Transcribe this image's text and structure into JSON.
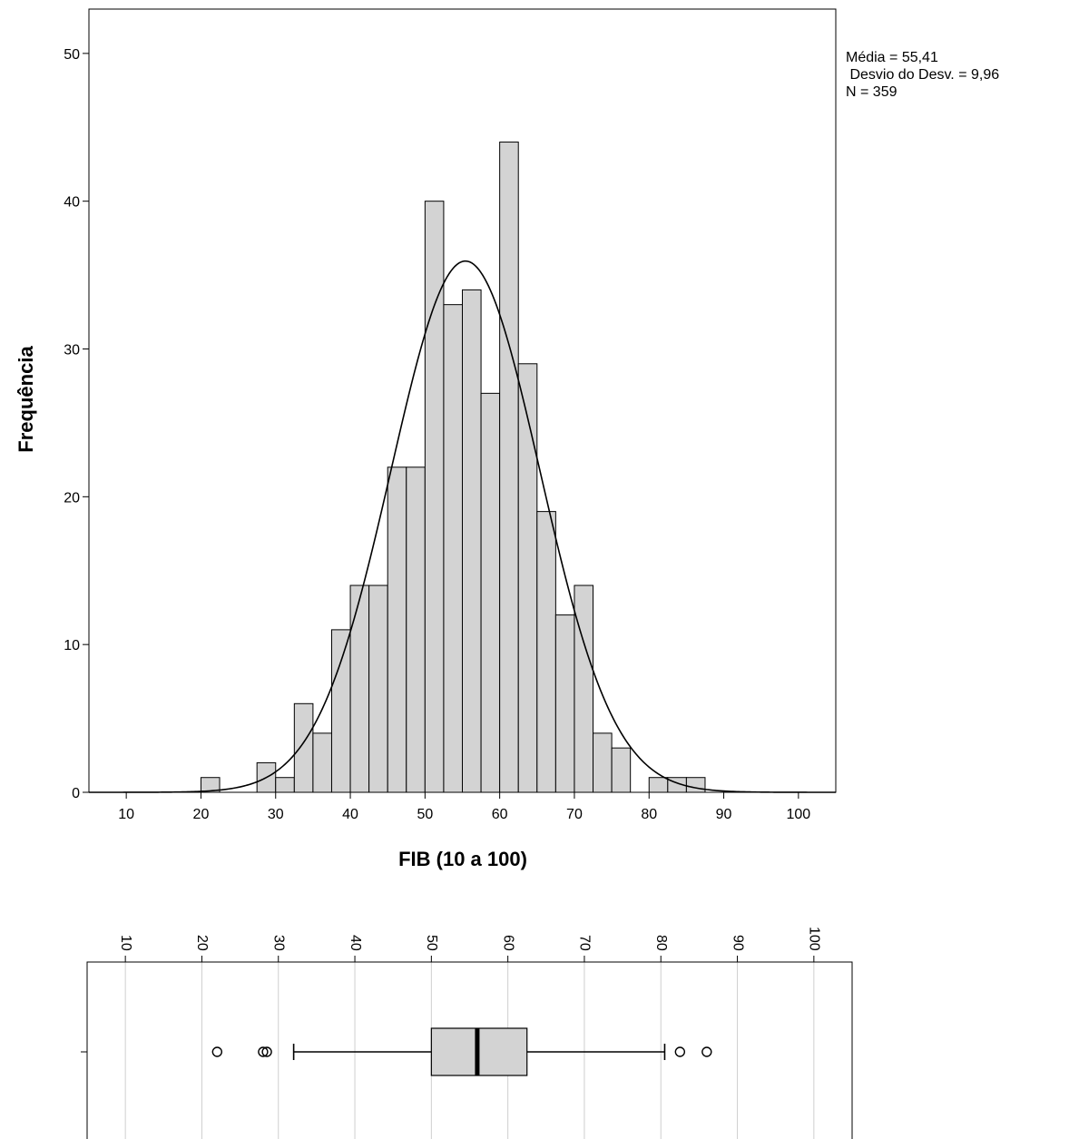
{
  "colors": {
    "bar_fill": "#d3d3d3",
    "bar_stroke": "#000000",
    "curve": "#000000",
    "grid": "#cfcfcf",
    "box_fill": "#d3d3d3"
  },
  "stats": {
    "mean_line": "Média = 55,41",
    "sd_line": " Desvio do Desv. = 9,96",
    "n_line": "N = 359"
  },
  "chart_data": [
    {
      "type": "bar",
      "subtype": "histogram",
      "xlabel": "FIB (10 a 100)",
      "ylabel": "Frequência",
      "xlim": [
        5,
        105
      ],
      "ylim": [
        0,
        53
      ],
      "x_ticks": [
        10,
        20,
        30,
        40,
        50,
        60,
        70,
        80,
        90,
        100
      ],
      "y_ticks": [
        0,
        10,
        20,
        30,
        40,
        50
      ],
      "bin_width": 2.5,
      "bins": [
        {
          "start": 20,
          "end": 22.5,
          "count": 1
        },
        {
          "start": 27.5,
          "end": 30,
          "count": 2
        },
        {
          "start": 30,
          "end": 32.5,
          "count": 1
        },
        {
          "start": 32.5,
          "end": 35,
          "count": 6
        },
        {
          "start": 35,
          "end": 37.5,
          "count": 4
        },
        {
          "start": 37.5,
          "end": 40,
          "count": 11
        },
        {
          "start": 40,
          "end": 42.5,
          "count": 14
        },
        {
          "start": 42.5,
          "end": 45,
          "count": 14
        },
        {
          "start": 45,
          "end": 47.5,
          "count": 22
        },
        {
          "start": 47.5,
          "end": 50,
          "count": 22
        },
        {
          "start": 50,
          "end": 52.5,
          "count": 40
        },
        {
          "start": 52.5,
          "end": 55,
          "count": 33
        },
        {
          "start": 55,
          "end": 57.5,
          "count": 34
        },
        {
          "start": 57.5,
          "end": 60,
          "count": 27
        },
        {
          "start": 60,
          "end": 62.5,
          "count": 44
        },
        {
          "start": 62.5,
          "end": 65,
          "count": 29
        },
        {
          "start": 65,
          "end": 67.5,
          "count": 19
        },
        {
          "start": 67.5,
          "end": 70,
          "count": 12
        },
        {
          "start": 70,
          "end": 72.5,
          "count": 14
        },
        {
          "start": 72.5,
          "end": 75,
          "count": 4
        },
        {
          "start": 75,
          "end": 77.5,
          "count": 3
        },
        {
          "start": 80,
          "end": 82.5,
          "count": 1
        },
        {
          "start": 82.5,
          "end": 85,
          "count": 1
        },
        {
          "start": 85,
          "end": 87.5,
          "count": 1
        }
      ],
      "normal_curve": {
        "mean": 55.41,
        "sd": 9.96,
        "n": 359
      }
    },
    {
      "type": "boxplot",
      "orientation": "horizontal",
      "xlim": [
        5,
        105
      ],
      "x_ticks": [
        10,
        20,
        30,
        40,
        50,
        60,
        70,
        80,
        90,
        100
      ],
      "tick_label_rotation": "vertical",
      "grid": true,
      "whisker_low": 32,
      "q1": 50,
      "median": 56,
      "q3": 62.5,
      "whisker_high": 80.5,
      "outliers": [
        22,
        28,
        28.5,
        82.5,
        86
      ]
    }
  ]
}
